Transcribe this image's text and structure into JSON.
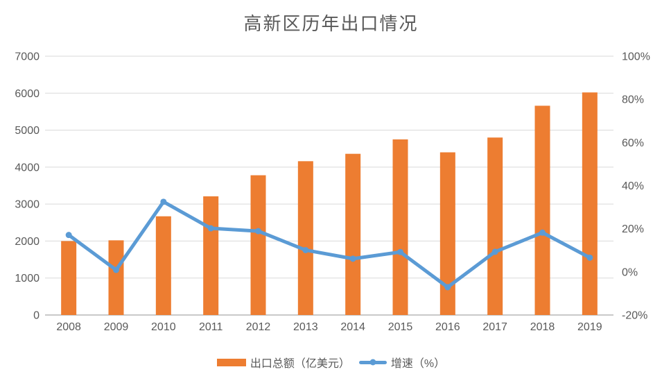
{
  "title": "高新区历年出口情况",
  "colors": {
    "bar": "#ED7D31",
    "line": "#5B9BD5",
    "grid": "#D9D9D9",
    "axis_line": "#C9C9C9",
    "text": "#595959"
  },
  "legend": {
    "items": [
      {
        "type": "bar",
        "label": "出口总额（亿美元）"
      },
      {
        "type": "line",
        "label": "增速（%）"
      }
    ]
  },
  "left_axis": {
    "min": 0,
    "max": 7000,
    "ticks": [
      "0",
      "1000",
      "2000",
      "3000",
      "4000",
      "5000",
      "6000",
      "7000"
    ]
  },
  "right_axis": {
    "min": -20,
    "max": 100,
    "ticks": [
      "-20%",
      "0%",
      "20%",
      "40%",
      "60%",
      "80%",
      "100%"
    ]
  },
  "chart_data": {
    "type": "bar",
    "subtype": "combo-bar-line",
    "title": "高新区历年出口情况",
    "categories": [
      "2008",
      "2009",
      "2010",
      "2011",
      "2012",
      "2013",
      "2014",
      "2015",
      "2016",
      "2017",
      "2018",
      "2019"
    ],
    "series": [
      {
        "name": "出口总额（亿美元）",
        "type": "bar",
        "axis": "left",
        "color": "#ED7D31",
        "values": [
          2000,
          2020,
          2670,
          3210,
          3780,
          4160,
          4360,
          4750,
          4400,
          4800,
          5660,
          6020
        ]
      },
      {
        "name": "增速（%）",
        "type": "line",
        "axis": "right",
        "color": "#5B9BD5",
        "values": [
          17.1,
          0.9,
          32.5,
          20.2,
          18.9,
          10.1,
          6.1,
          9.2,
          -7.1,
          9.3,
          18.2,
          6.6
        ]
      }
    ],
    "xlabel": "",
    "ylabel_left": "",
    "ylabel_right": "",
    "left_ylim": [
      0,
      7000
    ],
    "right_ylim": [
      -20,
      100
    ],
    "grid": true,
    "legend_position": "bottom"
  }
}
